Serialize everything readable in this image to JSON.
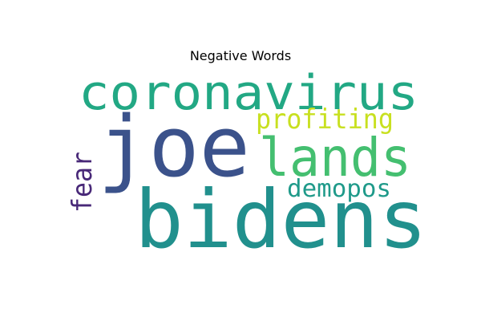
{
  "figure": {
    "title": "Negative Words"
  },
  "words": [
    {
      "text": "coronavirus",
      "color": "#22a884"
    },
    {
      "text": "joe",
      "color": "#3b528b"
    },
    {
      "text": "profiting",
      "color": "#c8e020"
    },
    {
      "text": "lands",
      "color": "#44bf70"
    },
    {
      "text": "fear",
      "color": "#482878"
    },
    {
      "text": "demopos",
      "color": "#1f9a8a"
    },
    {
      "text": "bidens",
      "color": "#21908d"
    }
  ]
}
